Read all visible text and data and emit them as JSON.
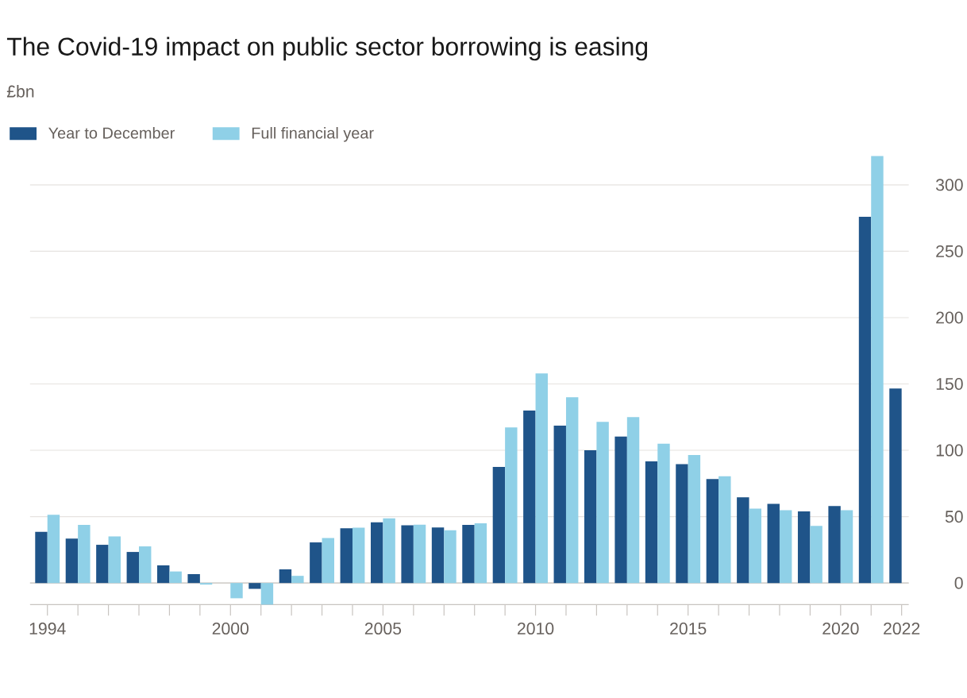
{
  "chart_data": {
    "type": "bar",
    "title": "The Covid-19 impact on public sector borrowing is easing",
    "subtitle": "£bn",
    "categories": [
      "1994",
      null,
      null,
      null,
      null,
      null,
      "2000",
      null,
      null,
      null,
      null,
      "2005",
      null,
      null,
      null,
      null,
      "2010",
      null,
      null,
      null,
      null,
      "2015",
      null,
      null,
      null,
      null,
      "2020",
      null,
      "2022"
    ],
    "series": [
      {
        "name": "Year to December",
        "color": "#1f5489",
        "values": [
          38.5,
          33.5,
          28.8,
          23.4,
          13.3,
          6.7,
          null,
          -4.4,
          10.3,
          30.6,
          41.3,
          45.8,
          43.5,
          41.9,
          43.8,
          87.5,
          130,
          118.6,
          100,
          110.3,
          91.7,
          89.6,
          78.3,
          64.6,
          59.7,
          54,
          58,
          276,
          146.6
        ]
      },
      {
        "name": "Full financial year",
        "color": "#8fd0e7",
        "values": [
          51.4,
          43.8,
          35.1,
          27.6,
          8.7,
          -1.2,
          -11.5,
          -16.3,
          5.4,
          33.9,
          41.7,
          48.8,
          44,
          39.7,
          45,
          117.3,
          158,
          140,
          121.4,
          125,
          105,
          96.5,
          80.5,
          56.1,
          54.9,
          43,
          54.9,
          321.8,
          null
        ]
      }
    ],
    "ylim": [
      -16.3,
      322
    ],
    "yticks": [
      0,
      50,
      100,
      150,
      200,
      250,
      300
    ],
    "grid": "y",
    "legend": "top left"
  }
}
